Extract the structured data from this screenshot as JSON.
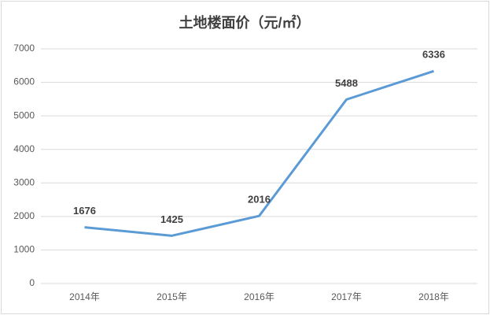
{
  "chart_data": {
    "type": "line",
    "title": "土地楼面价（元/㎡）",
    "categories": [
      "2014年",
      "2015年",
      "2016年",
      "2017年",
      "2018年"
    ],
    "values": [
      1676,
      1425,
      2016,
      5488,
      6336
    ],
    "color": "#5b9bd5",
    "ylim": [
      0,
      7000
    ],
    "yticks": [
      0,
      1000,
      2000,
      3000,
      4000,
      5000,
      6000,
      7000
    ],
    "grid": true
  }
}
